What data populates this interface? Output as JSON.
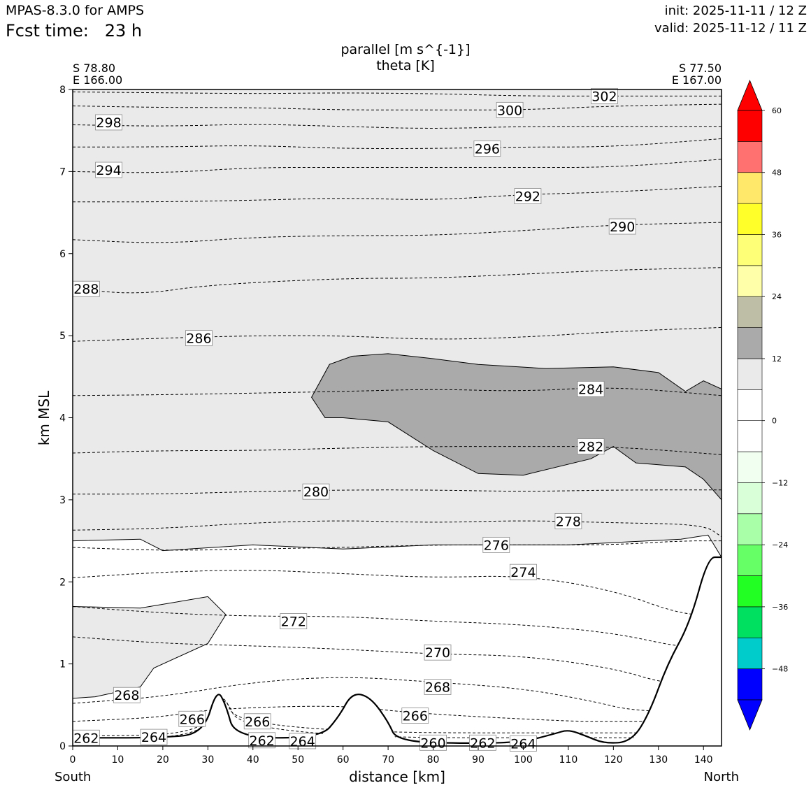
{
  "header": {
    "model": "MPAS-8.3.0 for AMPS",
    "fcst_label": "Fcst time:",
    "fcst_value": "23 h",
    "init": "init: 2025-11-11 / 12 Z",
    "valid": "valid: 2025-11-12 / 11 Z"
  },
  "section": {
    "start_lat": "S 78.80",
    "start_lon": "E 166.00",
    "end_lat": "S 77.50",
    "end_lon": "E 167.00",
    "left_end": "South",
    "right_end": "North"
  },
  "chart_data": {
    "type": "cross-section contour",
    "title": "parallel [m s^{-1}]",
    "subtitle": "theta [K]",
    "xlabel": "distance [km]",
    "ylabel": "km MSL",
    "xlim": [
      0,
      144
    ],
    "ylim": [
      0,
      8
    ],
    "x_ticks": [
      0,
      10,
      20,
      30,
      40,
      50,
      60,
      70,
      80,
      90,
      100,
      110,
      120,
      130,
      140
    ],
    "y_ticks": [
      0,
      1,
      2,
      3,
      4,
      5,
      6,
      7,
      8
    ],
    "filled_field": {
      "name": "parallel wind",
      "units": "m s^{-1}",
      "levels": [
        -54,
        -48,
        -42,
        -36,
        -30,
        -24,
        -18,
        -12,
        -6,
        0,
        6,
        12,
        18,
        24,
        30,
        36,
        42,
        48,
        54,
        60
      ],
      "colors": [
        "#0000ff",
        "#00cccc",
        "#00e060",
        "#22ff22",
        "#66ff66",
        "#a8ffa8",
        "#d8ffd8",
        "#f0fff0",
        "#ffffff",
        "#ffffff",
        "#eaeaea",
        "#aaaaaa",
        "#bebda6",
        "#ffffaa",
        "#ffff77",
        "#ffff2a",
        "#ffe86a",
        "#ff7070",
        "#ff0000"
      ],
      "colorbar_labels": [
        -48,
        -36,
        -24,
        -12,
        0,
        12,
        24,
        36,
        48,
        60
      ],
      "extend": "both"
    },
    "theta_contours": [
      {
        "value": 262,
        "label_x": 3,
        "label_y": 0.1,
        "heights": [
          [
            0,
            0.1
          ],
          [
            30,
            0.1
          ],
          [
            33,
            0.7
          ],
          [
            38,
            0.1
          ],
          [
            144,
            0.1
          ]
        ]
      },
      {
        "value": 264,
        "label_x": 18,
        "label_y": 0.11,
        "heights": [
          [
            0,
            0.12
          ],
          [
            30,
            0.14
          ],
          [
            33,
            0.72
          ],
          [
            37,
            0.16
          ],
          [
            144,
            0.16
          ]
        ]
      },
      {
        "value": 266,
        "label_x": 26.5,
        "label_y": 0.33,
        "heights": [
          [
            0,
            0.3
          ],
          [
            20,
            0.35
          ],
          [
            30,
            0.45
          ],
          [
            60,
            0.5
          ],
          [
            75,
            0.4
          ],
          [
            110,
            0.3
          ],
          [
            120,
            0.3
          ],
          [
            144,
            0.3
          ]
        ]
      },
      {
        "value": 268,
        "label_x": 12,
        "label_y": 0.62,
        "heights": [
          [
            0,
            0.52
          ],
          [
            20,
            0.6
          ],
          [
            40,
            0.78
          ],
          [
            60,
            0.85
          ],
          [
            80,
            0.78
          ],
          [
            100,
            0.7
          ],
          [
            115,
            0.55
          ],
          [
            125,
            0.42
          ],
          [
            144,
            0.42
          ]
        ]
      },
      {
        "value": 270,
        "label_x": 81,
        "label_y": 1.14,
        "heights": [
          [
            0,
            1.33
          ],
          [
            20,
            1.25
          ],
          [
            40,
            1.22
          ],
          [
            60,
            1.18
          ],
          [
            80,
            1.12
          ],
          [
            100,
            1.1
          ],
          [
            120,
            0.95
          ],
          [
            132,
            0.75
          ],
          [
            144,
            0.75
          ]
        ]
      },
      {
        "value": 272,
        "label_x": 49,
        "label_y": 1.52,
        "heights": [
          [
            0,
            1.7
          ],
          [
            20,
            1.62
          ],
          [
            40,
            1.58
          ],
          [
            60,
            1.58
          ],
          [
            80,
            1.52
          ],
          [
            100,
            1.48
          ],
          [
            120,
            1.38
          ],
          [
            135,
            1.2
          ],
          [
            144,
            1.2
          ]
        ]
      },
      {
        "value": 274,
        "label_x": 100,
        "label_y": 2.12,
        "heights": [
          [
            0,
            2.05
          ],
          [
            20,
            2.12
          ],
          [
            40,
            2.15
          ],
          [
            60,
            2.1
          ],
          [
            80,
            2.05
          ],
          [
            100,
            2.08
          ],
          [
            120,
            1.9
          ],
          [
            135,
            1.6
          ],
          [
            144,
            1.6
          ]
        ]
      },
      {
        "value": 276,
        "label_x": 94,
        "label_y": 2.45,
        "heights": [
          [
            0,
            2.42
          ],
          [
            20,
            2.38
          ],
          [
            40,
            2.4
          ],
          [
            60,
            2.42
          ],
          [
            80,
            2.45
          ],
          [
            100,
            2.45
          ],
          [
            120,
            2.45
          ],
          [
            135,
            2.5
          ],
          [
            144,
            2.5
          ]
        ]
      },
      {
        "value": 278,
        "label_x": 110,
        "label_y": 2.74,
        "heights": [
          [
            0,
            2.63
          ],
          [
            20,
            2.65
          ],
          [
            40,
            2.72
          ],
          [
            60,
            2.75
          ],
          [
            80,
            2.72
          ],
          [
            100,
            2.75
          ],
          [
            120,
            2.72
          ],
          [
            140,
            2.7
          ],
          [
            144,
            2.55
          ]
        ]
      },
      {
        "value": 280,
        "label_x": 54,
        "label_y": 3.1,
        "heights": [
          [
            0,
            3.07
          ],
          [
            20,
            3.07
          ],
          [
            40,
            3.1
          ],
          [
            60,
            3.12
          ],
          [
            80,
            3.12
          ],
          [
            100,
            3.1
          ],
          [
            120,
            3.12
          ],
          [
            144,
            3.12
          ]
        ]
      },
      {
        "value": 282,
        "label_x": 115,
        "label_y": 3.65,
        "heights": [
          [
            0,
            3.57
          ],
          [
            20,
            3.6
          ],
          [
            40,
            3.6
          ],
          [
            60,
            3.63
          ],
          [
            80,
            3.65
          ],
          [
            100,
            3.65
          ],
          [
            120,
            3.65
          ],
          [
            144,
            3.55
          ]
        ]
      },
      {
        "value": 284,
        "label_x": 115,
        "label_y": 4.35,
        "heights": [
          [
            0,
            4.27
          ],
          [
            20,
            4.28
          ],
          [
            40,
            4.3
          ],
          [
            60,
            4.32
          ],
          [
            80,
            4.35
          ],
          [
            100,
            4.32
          ],
          [
            120,
            4.38
          ],
          [
            144,
            4.27
          ]
        ]
      },
      {
        "value": 286,
        "label_x": 28,
        "label_y": 4.97,
        "heights": [
          [
            0,
            4.93
          ],
          [
            20,
            4.97
          ],
          [
            40,
            5.0
          ],
          [
            60,
            5.0
          ],
          [
            80,
            4.95
          ],
          [
            100,
            4.98
          ],
          [
            120,
            5.05
          ],
          [
            144,
            5.1
          ]
        ]
      },
      {
        "value": 288,
        "label_x": 3,
        "label_y": 5.57,
        "heights": [
          [
            0,
            5.57
          ],
          [
            15,
            5.5
          ],
          [
            30,
            5.62
          ],
          [
            60,
            5.7
          ],
          [
            80,
            5.7
          ],
          [
            100,
            5.75
          ],
          [
            120,
            5.8
          ],
          [
            144,
            5.83
          ]
        ]
      },
      {
        "value": 290,
        "label_x": 122,
        "label_y": 6.33,
        "heights": [
          [
            0,
            6.17
          ],
          [
            20,
            6.12
          ],
          [
            40,
            6.2
          ],
          [
            60,
            6.22
          ],
          [
            80,
            6.22
          ],
          [
            100,
            6.28
          ],
          [
            120,
            6.35
          ],
          [
            144,
            6.38
          ]
        ]
      },
      {
        "value": 292,
        "label_x": 101,
        "label_y": 6.7,
        "heights": [
          [
            0,
            6.63
          ],
          [
            20,
            6.63
          ],
          [
            40,
            6.65
          ],
          [
            60,
            6.68
          ],
          [
            80,
            6.65
          ],
          [
            100,
            6.72
          ],
          [
            120,
            6.75
          ],
          [
            144,
            6.82
          ]
        ]
      },
      {
        "value": 294,
        "label_x": 8,
        "label_y": 7.02,
        "heights": [
          [
            0,
            7.0
          ],
          [
            20,
            6.98
          ],
          [
            40,
            7.05
          ],
          [
            60,
            7.05
          ],
          [
            80,
            7.05
          ],
          [
            100,
            7.05
          ],
          [
            120,
            7.05
          ],
          [
            144,
            7.15
          ]
        ]
      },
      {
        "value": 296,
        "label_x": 92,
        "label_y": 7.28,
        "heights": [
          [
            0,
            7.3
          ],
          [
            20,
            7.3
          ],
          [
            40,
            7.32
          ],
          [
            60,
            7.28
          ],
          [
            80,
            7.28
          ],
          [
            100,
            7.3
          ],
          [
            120,
            7.3
          ],
          [
            144,
            7.4
          ]
        ]
      },
      {
        "value": 298,
        "label_x": 8,
        "label_y": 7.6,
        "heights": [
          [
            0,
            7.57
          ],
          [
            20,
            7.55
          ],
          [
            40,
            7.58
          ],
          [
            60,
            7.55
          ],
          [
            80,
            7.52
          ],
          [
            100,
            7.55
          ],
          [
            120,
            7.55
          ],
          [
            144,
            7.55
          ]
        ]
      },
      {
        "value": 300,
        "label_x": 97,
        "label_y": 7.75,
        "heights": [
          [
            0,
            7.8
          ],
          [
            20,
            7.78
          ],
          [
            40,
            7.78
          ],
          [
            60,
            7.75
          ],
          [
            80,
            7.75
          ],
          [
            100,
            7.75
          ],
          [
            120,
            7.8
          ],
          [
            144,
            7.82
          ]
        ]
      },
      {
        "value": 302,
        "label_x": 118,
        "label_y": 7.92,
        "heights": [
          [
            0,
            7.97
          ],
          [
            20,
            7.96
          ],
          [
            40,
            7.95
          ],
          [
            60,
            7.96
          ],
          [
            80,
            7.95
          ],
          [
            100,
            7.92
          ],
          [
            120,
            7.92
          ],
          [
            144,
            7.92
          ]
        ]
      }
    ],
    "extra_theta_labels": [
      {
        "value": 266,
        "x": 41,
        "y": 0.3
      },
      {
        "value": 266,
        "x": 76,
        "y": 0.37
      },
      {
        "value": 268,
        "x": 81,
        "y": 0.72
      },
      {
        "value": 262,
        "x": 42,
        "y": 0.07
      },
      {
        "value": 264,
        "x": 51,
        "y": 0.06
      },
      {
        "value": 260,
        "x": 80,
        "y": 0.04
      },
      {
        "value": 262,
        "x": 91,
        "y": 0.04
      },
      {
        "value": 264,
        "x": 100,
        "y": 0.03
      }
    ],
    "shading_regions": [
      {
        "level": "6-12",
        "color": "#eaeaea",
        "polygon": [
          [
            0,
            8
          ],
          [
            144,
            8
          ],
          [
            144,
            2.3
          ],
          [
            141,
            2.57
          ],
          [
            135,
            2.52
          ],
          [
            110,
            2.45
          ],
          [
            80,
            2.45
          ],
          [
            60,
            2.4
          ],
          [
            40,
            2.45
          ],
          [
            20,
            2.38
          ],
          [
            15,
            2.52
          ],
          [
            0,
            2.5
          ]
        ]
      },
      {
        "level": "6-12",
        "color": "#eaeaea",
        "polygon": [
          [
            0,
            1.7
          ],
          [
            15,
            1.68
          ],
          [
            30,
            1.82
          ],
          [
            34,
            1.6
          ],
          [
            30,
            1.25
          ],
          [
            18,
            0.95
          ],
          [
            15,
            0.72
          ],
          [
            5,
            0.6
          ],
          [
            0,
            0.58
          ]
        ]
      },
      {
        "level": "12-18",
        "color": "#aaaaaa",
        "polygon": [
          [
            53,
            4.25
          ],
          [
            57,
            4.65
          ],
          [
            62,
            4.75
          ],
          [
            70,
            4.78
          ],
          [
            80,
            4.72
          ],
          [
            90,
            4.65
          ],
          [
            105,
            4.6
          ],
          [
            120,
            4.62
          ],
          [
            130,
            4.55
          ],
          [
            136,
            4.32
          ],
          [
            140,
            4.45
          ],
          [
            144,
            4.35
          ],
          [
            144,
            3.0
          ],
          [
            140,
            3.25
          ],
          [
            136,
            3.4
          ],
          [
            125,
            3.45
          ],
          [
            120,
            3.65
          ],
          [
            115,
            3.5
          ],
          [
            100,
            3.3
          ],
          [
            90,
            3.32
          ],
          [
            80,
            3.6
          ],
          [
            70,
            3.95
          ],
          [
            60,
            4.0
          ],
          [
            56,
            4.0
          ]
        ]
      }
    ],
    "terrain_km": [
      [
        0,
        0.1
      ],
      [
        20,
        0.1
      ],
      [
        29,
        0.15
      ],
      [
        32,
        0.7
      ],
      [
        34,
        0.5
      ],
      [
        36,
        0.1
      ],
      [
        55,
        0.1
      ],
      [
        59,
        0.35
      ],
      [
        62,
        0.65
      ],
      [
        66,
        0.6
      ],
      [
        70,
        0.3
      ],
      [
        72,
        0.05
      ],
      [
        90,
        0.03
      ],
      [
        100,
        0.05
      ],
      [
        107,
        0.15
      ],
      [
        110,
        0.2
      ],
      [
        114,
        0.12
      ],
      [
        118,
        0.03
      ],
      [
        124,
        0.05
      ],
      [
        128,
        0.4
      ],
      [
        132,
        1.0
      ],
      [
        137,
        1.5
      ],
      [
        141,
        2.3
      ],
      [
        144,
        2.3
      ]
    ]
  }
}
